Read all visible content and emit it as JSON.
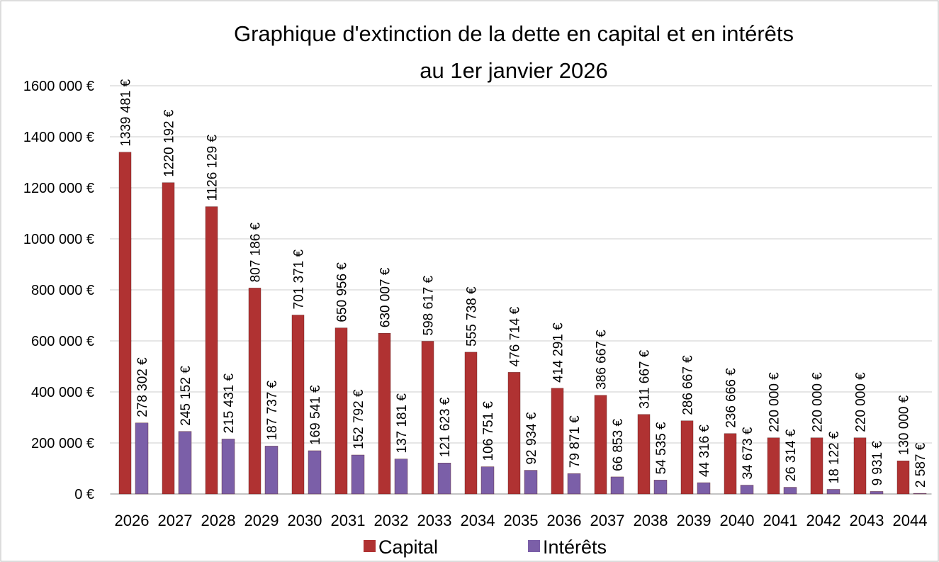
{
  "chart_data": {
    "type": "bar",
    "title": [
      "Graphique d'extinction de la dette en capital et en intérêts",
      "au 1er janvier 2026"
    ],
    "categories": [
      "2026",
      "2027",
      "2028",
      "2029",
      "2030",
      "2031",
      "2032",
      "2033",
      "2034",
      "2035",
      "2036",
      "2037",
      "2038",
      "2039",
      "2040",
      "2041",
      "2042",
      "2043",
      "2044"
    ],
    "series": [
      {
        "name": "Capital",
        "color": "#b03232",
        "values": [
          1339481,
          1220192,
          1126129,
          807186,
          701371,
          650956,
          630007,
          598617,
          555738,
          476714,
          414291,
          386667,
          311667,
          286667,
          236666,
          220000,
          220000,
          220000,
          130000
        ],
        "value_labels": [
          "1339 481 €",
          "1220 192 €",
          "1126 129 €",
          "807 186 €",
          "701 371 €",
          "650 956 €",
          "630 007 €",
          "598 617 €",
          "555 738 €",
          "476 714 €",
          "414 291 €",
          "386 667 €",
          "311 667 €",
          "286 667 €",
          "236 666 €",
          "220 000 €",
          "220 000 €",
          "220 000 €",
          "130 000 €"
        ]
      },
      {
        "name": "Intérêts",
        "color": "#7b5fa8",
        "values": [
          278302,
          245152,
          215431,
          187737,
          169541,
          152792,
          137181,
          121623,
          106751,
          92934,
          79871,
          66853,
          54535,
          44316,
          34673,
          26314,
          18122,
          9931,
          2587
        ],
        "value_labels": [
          "278 302 €",
          "245 152 €",
          "215 431 €",
          "187 737 €",
          "169 541 €",
          "152 792 €",
          "137 181 €",
          "121 623 €",
          "106 751 €",
          "92 934 €",
          "79 871 €",
          "66 853 €",
          "54 535 €",
          "44 316 €",
          "34 673 €",
          "26 314 €",
          "18 122 €",
          "9 931 €",
          "2 587 €"
        ]
      }
    ],
    "ylim": [
      0,
      1600000
    ],
    "yticks": [
      {
        "value": 0,
        "label": "0 €"
      },
      {
        "value": 200000,
        "label": "200 000 €"
      },
      {
        "value": 400000,
        "label": "400 000 €"
      },
      {
        "value": 600000,
        "label": "600 000 €"
      },
      {
        "value": 800000,
        "label": "800 000 €"
      },
      {
        "value": 1000000,
        "label": "1000 000 €"
      },
      {
        "value": 1200000,
        "label": "1200 000 €"
      },
      {
        "value": 1400000,
        "label": "1400 000 €"
      },
      {
        "value": 1600000,
        "label": "1600 000 €"
      }
    ],
    "grid": true,
    "legend": "bottom"
  }
}
